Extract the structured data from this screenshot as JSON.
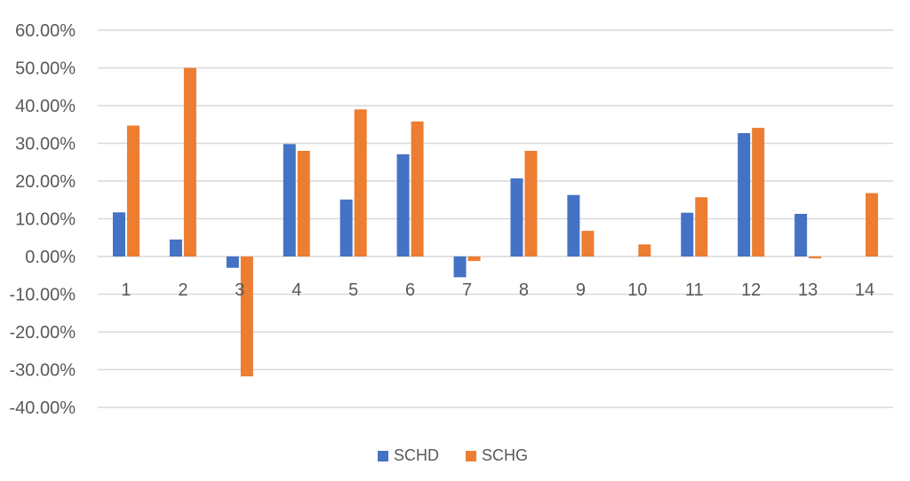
{
  "chart_data": {
    "type": "bar",
    "categories": [
      "1",
      "2",
      "3",
      "4",
      "5",
      "6",
      "7",
      "8",
      "9",
      "10",
      "11",
      "12",
      "13",
      "14"
    ],
    "series": [
      {
        "name": "SCHD",
        "color": "#4472c4",
        "values": [
          0.117,
          0.045,
          -0.03,
          0.298,
          0.151,
          0.271,
          -0.055,
          0.207,
          0.163,
          0.0,
          0.116,
          0.327,
          0.113,
          0.0
        ]
      },
      {
        "name": "SCHG",
        "color": "#ed7d31",
        "values": [
          0.347,
          0.5,
          -0.318,
          0.28,
          0.39,
          0.358,
          -0.012,
          0.28,
          0.068,
          0.032,
          0.157,
          0.341,
          -0.005,
          0.168
        ]
      }
    ],
    "y_ticks": [
      "60.00%",
      "50.00%",
      "40.00%",
      "30.00%",
      "20.00%",
      "10.00%",
      "0.00%",
      "-10.00%",
      "-20.00%",
      "-30.00%",
      "-40.00%"
    ],
    "ylim": [
      -0.4,
      0.6
    ],
    "grid": true,
    "legend_position": "bottom"
  }
}
